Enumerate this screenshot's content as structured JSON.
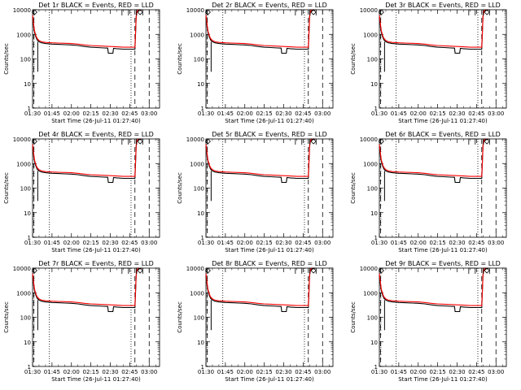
{
  "figure": {
    "xlabel": "Start Time (26-Jul-11 01:27:40)",
    "ylabel": "Counts/sec"
  },
  "chart_data": [
    {
      "type": "line",
      "title": "Det 1r BLACK = Events, RED = LLD"
    },
    {
      "type": "line",
      "title": "Det 2r BLACK = Events, RED = LLD"
    },
    {
      "type": "line",
      "title": "Det 3r BLACK = Events, RED = LLD"
    },
    {
      "type": "line",
      "title": "Det 4r BLACK = Events, RED = LLD"
    },
    {
      "type": "line",
      "title": "Det 5r BLACK = Events, RED = LLD"
    },
    {
      "type": "line",
      "title": "Det 6r BLACK = Events, RED = LLD"
    },
    {
      "type": "line",
      "title": "Det 7r BLACK = Events, RED = LLD"
    },
    {
      "type": "line",
      "title": "Det 8r BLACK = Events, RED = LLD"
    },
    {
      "type": "line",
      "title": "Det 9r BLACK = Events, RED = LLD"
    }
  ],
  "shared": {
    "x_unit": "minutes",
    "xlim": [
      90,
      188
    ],
    "ylim": [
      1,
      10000
    ],
    "yscale": "log",
    "x_tick_values": [
      90,
      105,
      120,
      135,
      150,
      165,
      180
    ],
    "x_tick_labels": [
      "01:30",
      "01:45",
      "02:00",
      "02:15",
      "02:30",
      "02:45",
      "03:00"
    ],
    "y_tick_values": [
      1,
      10,
      100,
      1000,
      10000
    ],
    "y_tick_labels": [
      "1",
      "10",
      "100",
      "1000",
      "10000"
    ],
    "series": [
      {
        "name": "Events",
        "color": "#000000",
        "x": [
          90,
          90.7,
          91.5,
          92.5,
          93.5,
          95,
          97,
          100,
          105,
          110,
          115,
          120,
          125,
          130,
          135,
          140,
          145,
          148,
          148.5,
          152,
          152.5,
          155,
          160,
          165,
          169,
          170,
          170.6,
          171.2,
          172,
          174
        ],
        "y": [
          5000,
          2500,
          1200,
          800,
          600,
          500,
          450,
          420,
          400,
          390,
          380,
          370,
          350,
          320,
          300,
          290,
          280,
          275,
          170,
          170,
          270,
          260,
          250,
          250,
          250,
          5000,
          8000,
          9000,
          9500,
          9500
        ]
      },
      {
        "name": "LLD",
        "color": "#ff0000",
        "x": [
          90,
          90.7,
          91.5,
          92.5,
          93.5,
          95,
          97,
          100,
          105,
          110,
          115,
          120,
          125,
          130,
          135,
          140,
          145,
          150,
          155,
          160,
          165,
          169,
          170,
          170.6,
          171.2,
          172,
          174
        ],
        "y": [
          6000,
          3000,
          1400,
          900,
          680,
          560,
          500,
          470,
          450,
          440,
          430,
          420,
          400,
          370,
          350,
          340,
          330,
          320,
          310,
          300,
          300,
          300,
          5500,
          8500,
          9500,
          10000,
          10000
        ]
      }
    ],
    "events_dropout": {
      "x": 94,
      "y_low": 30,
      "y_high": 500
    },
    "dotted_vlines_x": [
      103,
      166
    ],
    "dashed_vlines_x": [
      91,
      169,
      180
    ],
    "bracket_markers": [
      {
        "x": [
          159,
          164
        ],
        "y": 10000
      },
      {
        "x": [
          170,
          175
        ],
        "y": 10000
      }
    ],
    "diamond_markers": [
      {
        "x": 91.5,
        "y": 10000
      },
      {
        "x": 173,
        "y": 10000
      }
    ]
  }
}
